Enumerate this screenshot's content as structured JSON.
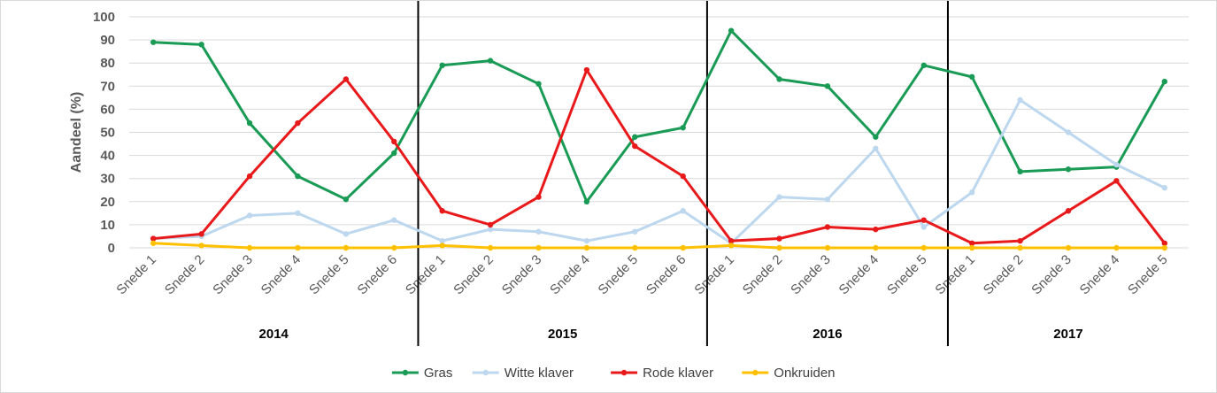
{
  "chart_data": {
    "type": "line",
    "ylabel": "Aandeel (%)",
    "xlabel": "",
    "ylim": [
      0,
      100
    ],
    "yticks": [
      0,
      10,
      20,
      30,
      40,
      50,
      60,
      70,
      80,
      90,
      100
    ],
    "grid": true,
    "legend_position": "bottom",
    "categories": [
      "Snede 1",
      "Snede 2",
      "Snede 3",
      "Snede 4",
      "Snede 5",
      "Snede 6",
      "Snede 1",
      "Snede 2",
      "Snede 3",
      "Snede 4",
      "Snede 5",
      "Snede 6",
      "Snede 1",
      "Snede 2",
      "Snede 3",
      "Snede 4",
      "Snede 5",
      "Snede 1",
      "Snede 2",
      "Snede 3",
      "Snede 4",
      "Snede 5"
    ],
    "groups": [
      {
        "label": "2014",
        "start": 0,
        "end": 5
      },
      {
        "label": "2015",
        "start": 6,
        "end": 11
      },
      {
        "label": "2016",
        "start": 12,
        "end": 16
      },
      {
        "label": "2017",
        "start": 17,
        "end": 21
      }
    ],
    "series": [
      {
        "name": "Gras",
        "color": "#1a9b55",
        "values": [
          89,
          88,
          54,
          31,
          21,
          41,
          79,
          81,
          71,
          20,
          48,
          52,
          94,
          73,
          70,
          48,
          79,
          74,
          33,
          34,
          35,
          72
        ]
      },
      {
        "name": "Witte klaver",
        "color": "#bdd7ee",
        "values": [
          4,
          5,
          14,
          15,
          6,
          12,
          3,
          8,
          7,
          3,
          7,
          16,
          2,
          22,
          21,
          43,
          9,
          24,
          64,
          50,
          36,
          26
        ]
      },
      {
        "name": "Rode klaver",
        "color": "#e8191b",
        "values": [
          4,
          6,
          31,
          54,
          73,
          46,
          16,
          10,
          22,
          77,
          44,
          31,
          3,
          4,
          9,
          8,
          12,
          2,
          3,
          16,
          29,
          2
        ]
      },
      {
        "name": "Onkruiden",
        "color": "#ffc000",
        "values": [
          2,
          1,
          0,
          0,
          0,
          0,
          1,
          0,
          0,
          0,
          0,
          0,
          1,
          0,
          0,
          0,
          0,
          0,
          0,
          0,
          0,
          0
        ]
      }
    ]
  }
}
